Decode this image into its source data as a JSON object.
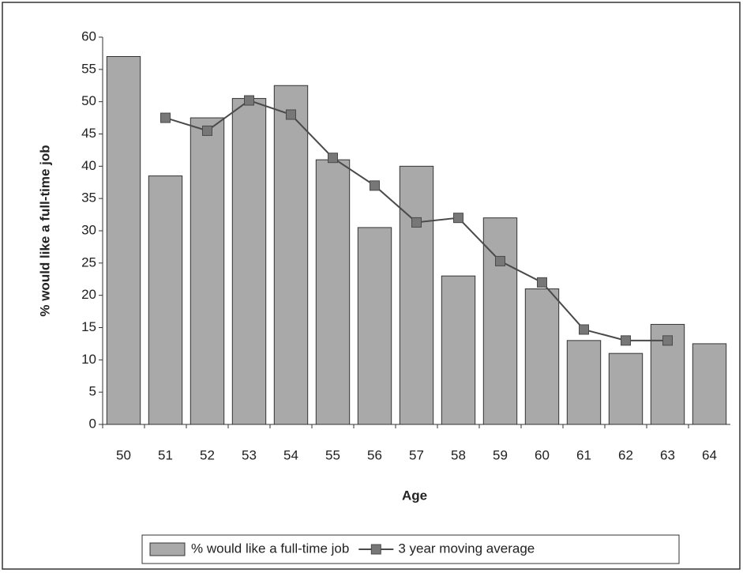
{
  "chart_data": {
    "type": "bar",
    "x_label": "Age",
    "y_label": "% would like a full-time job",
    "categories": [
      "50",
      "51",
      "52",
      "53",
      "54",
      "55",
      "56",
      "57",
      "58",
      "59",
      "60",
      "61",
      "62",
      "63",
      "64"
    ],
    "series": [
      {
        "name": "% would like a full-time job",
        "type": "bar",
        "color": "#a9a9a9",
        "values": [
          57,
          38.5,
          47.5,
          50.5,
          52.5,
          41,
          30.5,
          40,
          23,
          32,
          21,
          13,
          11,
          15.5,
          12.5
        ]
      },
      {
        "name": "3 year moving average",
        "type": "line",
        "color": "#4a4a4a",
        "values": [
          null,
          47.5,
          45.5,
          50.2,
          48,
          41.3,
          37,
          31.3,
          32,
          25.3,
          22,
          14.7,
          13,
          13,
          null
        ]
      }
    ],
    "ylim": [
      0,
      60
    ],
    "yticks": [
      0,
      5,
      10,
      15,
      20,
      25,
      30,
      35,
      40,
      45,
      50,
      55,
      60
    ]
  }
}
